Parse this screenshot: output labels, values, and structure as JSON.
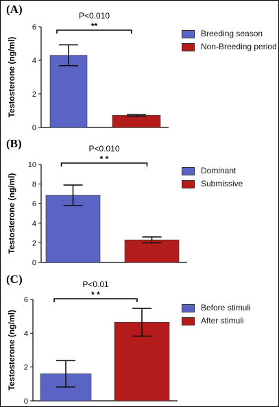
{
  "colors": {
    "series_a": "#5a64c4",
    "series_b": "#b41c1c",
    "axis": "#000000"
  },
  "chart_data": [
    {
      "type": "bar",
      "panel_label": "(A)",
      "ylabel": "Testosterone (ng/ml)",
      "ylim": [
        0,
        6
      ],
      "yticks": [
        0,
        2,
        4,
        6
      ],
      "categories": [
        "Breeding season",
        "Non-Breeding period"
      ],
      "values": [
        4.3,
        0.72
      ],
      "errors": [
        0.62,
        0.05
      ],
      "legend": [
        "Breeding season",
        "Non-Breeding period"
      ],
      "legend_position": "top-right",
      "annotation": {
        "text": "P<0.010",
        "stars": "**"
      }
    },
    {
      "type": "bar",
      "panel_label": "(B)",
      "ylabel": "Testosterone (ng/ml)",
      "ylim": [
        0,
        10
      ],
      "yticks": [
        0,
        2,
        4,
        6,
        8,
        10
      ],
      "categories": [
        "Dominant",
        "Submissive"
      ],
      "values": [
        6.85,
        2.3
      ],
      "errors": [
        1.05,
        0.3
      ],
      "legend": [
        "Dominant",
        "Submissive"
      ],
      "legend_position": "top-right",
      "annotation": {
        "text": "P<0.010",
        "stars": "* *"
      }
    },
    {
      "type": "bar",
      "panel_label": "(C)",
      "ylabel": "Testosterone (ng/ml)",
      "ylim": [
        0,
        6
      ],
      "yticks": [
        0,
        2,
        4,
        6
      ],
      "categories": [
        "Before stimuli",
        "After stimuli"
      ],
      "values": [
        1.6,
        4.65
      ],
      "errors": [
        0.78,
        0.82
      ],
      "legend": [
        "Before stimuli",
        "After stimuli"
      ],
      "legend_position": "top-right",
      "annotation": {
        "text": "P<0.01",
        "stars": "* *"
      }
    }
  ]
}
